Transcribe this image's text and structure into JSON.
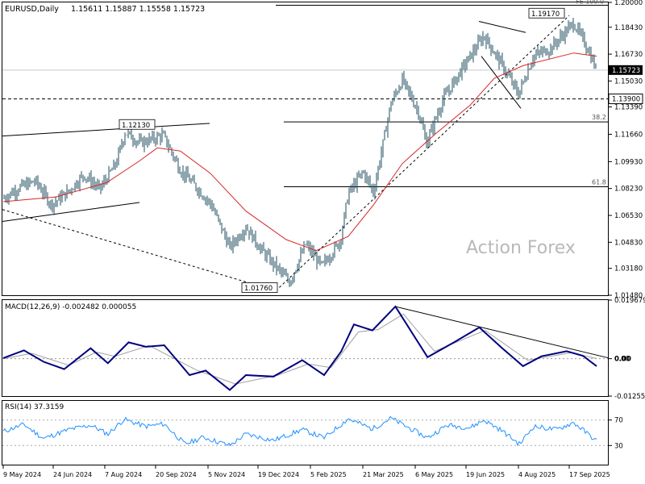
{
  "header": {
    "symbol": "EURUSD,Daily",
    "ohlc": "1.15611 1.15887 1.15558 1.15723"
  },
  "watermark": "Action Forex",
  "colors": {
    "candle": "#1f4e5f",
    "sma": "#d62728",
    "macd_line": "#000080",
    "macd_signal": "#a0a0a0",
    "rsi": "#1e90ff",
    "current_price_bg": "#000000"
  },
  "chart_data": [
    {
      "type": "candlestick",
      "panel": "price",
      "title": "EURUSD,Daily",
      "ylim": [
        1.0148,
        1.2
      ],
      "y_ticks": [
        "1.20000",
        "1.18430",
        "1.16730",
        "1.15030",
        "1.13390",
        "1.11660",
        "1.09930",
        "1.08230",
        "1.06530",
        "1.04830",
        "1.03180",
        "1.01480"
      ],
      "x_ticks": [
        "9 May 2024",
        "24 Jun 2024",
        "7 Aug 2024",
        "20 Sep 2024",
        "5 Nov 2024",
        "19 Dec 2024",
        "5 Feb 2025",
        "21 Mar 2025",
        "6 May 2025",
        "19 Jun 2025",
        "4 Aug 2025",
        "17 Sep 2025"
      ],
      "current_price": "1.15723",
      "levels": [
        {
          "label": "FE 100.0",
          "value": 1.1982
        },
        {
          "label": "38.2",
          "value": 1.1244
        },
        {
          "label": "61.8",
          "value": 1.0834
        },
        {
          "label": "1.13900",
          "value": 1.139
        }
      ],
      "annotations": [
        "1.19170",
        "1.12130",
        "1.01760"
      ],
      "series_close": [
        {
          "date": "2024-05-09",
          "value": 1.076
        },
        {
          "date": "2024-05-23",
          "value": 1.083
        },
        {
          "date": "2024-06-06",
          "value": 1.087
        },
        {
          "date": "2024-06-20",
          "value": 1.072
        },
        {
          "date": "2024-07-04",
          "value": 1.08
        },
        {
          "date": "2024-07-18",
          "value": 1.091
        },
        {
          "date": "2024-08-01",
          "value": 1.082
        },
        {
          "date": "2024-08-15",
          "value": 1.098
        },
        {
          "date": "2024-08-23",
          "value": 1.118
        },
        {
          "date": "2024-09-05",
          "value": 1.111
        },
        {
          "date": "2024-09-25",
          "value": 1.116
        },
        {
          "date": "2024-10-10",
          "value": 1.094
        },
        {
          "date": "2024-10-24",
          "value": 1.083
        },
        {
          "date": "2024-11-06",
          "value": 1.072
        },
        {
          "date": "2024-11-22",
          "value": 1.045
        },
        {
          "date": "2024-12-06",
          "value": 1.058
        },
        {
          "date": "2024-12-20",
          "value": 1.043
        },
        {
          "date": "2025-01-13",
          "value": 1.023
        },
        {
          "date": "2025-01-27",
          "value": 1.047
        },
        {
          "date": "2025-02-10",
          "value": 1.033
        },
        {
          "date": "2025-02-26",
          "value": 1.049
        },
        {
          "date": "2025-03-05",
          "value": 1.079
        },
        {
          "date": "2025-03-18",
          "value": 1.093
        },
        {
          "date": "2025-03-27",
          "value": 1.08
        },
        {
          "date": "2025-04-11",
          "value": 1.136
        },
        {
          "date": "2025-04-21",
          "value": 1.151
        },
        {
          "date": "2025-05-05",
          "value": 1.131
        },
        {
          "date": "2025-05-12",
          "value": 1.111
        },
        {
          "date": "2025-05-26",
          "value": 1.138
        },
        {
          "date": "2025-06-12",
          "value": 1.158
        },
        {
          "date": "2025-07-01",
          "value": 1.179
        },
        {
          "date": "2025-07-17",
          "value": 1.16
        },
        {
          "date": "2025-07-31",
          "value": 1.142
        },
        {
          "date": "2025-08-13",
          "value": 1.166
        },
        {
          "date": "2025-08-28",
          "value": 1.171
        },
        {
          "date": "2025-09-17",
          "value": 1.187
        },
        {
          "date": "2025-09-29",
          "value": 1.171
        },
        {
          "date": "2025-10-07",
          "value": 1.157
        }
      ],
      "series_sma": [
        {
          "date": "2024-05-09",
          "value": 1.074
        },
        {
          "date": "2024-06-24",
          "value": 1.077
        },
        {
          "date": "2024-08-07",
          "value": 1.086
        },
        {
          "date": "2024-09-05",
          "value": 1.1
        },
        {
          "date": "2024-09-20",
          "value": 1.108
        },
        {
          "date": "2024-10-10",
          "value": 1.106
        },
        {
          "date": "2024-11-05",
          "value": 1.092
        },
        {
          "date": "2024-12-06",
          "value": 1.068
        },
        {
          "date": "2025-01-10",
          "value": 1.05
        },
        {
          "date": "2025-02-05",
          "value": 1.043
        },
        {
          "date": "2025-03-05",
          "value": 1.052
        },
        {
          "date": "2025-03-27",
          "value": 1.072
        },
        {
          "date": "2025-04-21",
          "value": 1.098
        },
        {
          "date": "2025-05-20",
          "value": 1.117
        },
        {
          "date": "2025-06-19",
          "value": 1.135
        },
        {
          "date": "2025-07-10",
          "value": 1.152
        },
        {
          "date": "2025-08-04",
          "value": 1.16
        },
        {
          "date": "2025-09-17",
          "value": 1.168
        },
        {
          "date": "2025-10-07",
          "value": 1.166
        }
      ]
    },
    {
      "type": "line",
      "panel": "macd",
      "title": "MACD(12,26,9) -0.002482 0.000055",
      "ylim": [
        -0.01255,
        0.01968
      ],
      "y_ticks": [
        "0.019679",
        "0.00",
        "-0.012552"
      ],
      "series": [
        {
          "name": "MACD",
          "points": [
            {
              "date": "2024-05-09",
              "value": 0.0002
            },
            {
              "date": "2024-05-27",
              "value": 0.0028
            },
            {
              "date": "2024-06-13",
              "value": -0.001
            },
            {
              "date": "2024-07-01",
              "value": -0.0035
            },
            {
              "date": "2024-07-24",
              "value": 0.0035
            },
            {
              "date": "2024-08-08",
              "value": -0.0015
            },
            {
              "date": "2024-08-26",
              "value": 0.0055
            },
            {
              "date": "2024-09-10",
              "value": 0.004
            },
            {
              "date": "2024-09-26",
              "value": 0.0045
            },
            {
              "date": "2024-10-18",
              "value": -0.0055
            },
            {
              "date": "2024-11-01",
              "value": -0.004
            },
            {
              "date": "2024-11-22",
              "value": -0.0105
            },
            {
              "date": "2024-12-06",
              "value": -0.0055
            },
            {
              "date": "2024-12-30",
              "value": -0.006
            },
            {
              "date": "2025-01-24",
              "value": -0.0005
            },
            {
              "date": "2025-02-12",
              "value": -0.0055
            },
            {
              "date": "2025-02-27",
              "value": 0.0025
            },
            {
              "date": "2025-03-10",
              "value": 0.0115
            },
            {
              "date": "2025-03-26",
              "value": 0.0095
            },
            {
              "date": "2025-04-15",
              "value": 0.0175
            },
            {
              "date": "2025-05-13",
              "value": 0.0005
            },
            {
              "date": "2025-06-05",
              "value": 0.0055
            },
            {
              "date": "2025-06-27",
              "value": 0.0105
            },
            {
              "date": "2025-07-17",
              "value": 0.0035
            },
            {
              "date": "2025-08-04",
              "value": -0.0025
            },
            {
              "date": "2025-08-20",
              "value": 0.0008
            },
            {
              "date": "2025-09-11",
              "value": 0.0025
            },
            {
              "date": "2025-09-25",
              "value": 0.001
            },
            {
              "date": "2025-10-07",
              "value": -0.0025
            }
          ]
        },
        {
          "name": "Signal",
          "points": [
            {
              "date": "2024-05-09",
              "value": 0.0
            },
            {
              "date": "2024-06-03",
              "value": 0.0018
            },
            {
              "date": "2024-07-05",
              "value": -0.0022
            },
            {
              "date": "2024-07-29",
              "value": 0.0022
            },
            {
              "date": "2024-08-14",
              "value": 0.0008
            },
            {
              "date": "2024-09-13",
              "value": 0.0044
            },
            {
              "date": "2024-10-24",
              "value": -0.0038
            },
            {
              "date": "2024-11-27",
              "value": -0.0085
            },
            {
              "date": "2025-01-03",
              "value": -0.0055
            },
            {
              "date": "2025-01-29",
              "value": -0.0018
            },
            {
              "date": "2025-02-18",
              "value": -0.003
            },
            {
              "date": "2025-03-14",
              "value": 0.009
            },
            {
              "date": "2025-03-31",
              "value": 0.0098
            },
            {
              "date": "2025-04-22",
              "value": 0.015
            },
            {
              "date": "2025-05-19",
              "value": 0.0025
            },
            {
              "date": "2025-07-02",
              "value": 0.0095
            },
            {
              "date": "2025-08-08",
              "value": -0.0005
            },
            {
              "date": "2025-09-15",
              "value": 0.002
            },
            {
              "date": "2025-10-07",
              "value": 5.5e-05
            }
          ]
        }
      ]
    },
    {
      "type": "line",
      "panel": "rsi",
      "title": "RSI(14) 37.3159",
      "ylim": [
        0,
        100
      ],
      "y_ticks": [
        "70",
        "30"
      ],
      "series": [
        {
          "name": "RSI(14)",
          "points": [
            {
              "date": "2024-05-09",
              "value": 52
            },
            {
              "date": "2024-05-27",
              "value": 63
            },
            {
              "date": "2024-06-13",
              "value": 41
            },
            {
              "date": "2024-07-05",
              "value": 55
            },
            {
              "date": "2024-07-24",
              "value": 62
            },
            {
              "date": "2024-08-08",
              "value": 48
            },
            {
              "date": "2024-08-22",
              "value": 71
            },
            {
              "date": "2024-09-10",
              "value": 60
            },
            {
              "date": "2024-09-26",
              "value": 64
            },
            {
              "date": "2024-10-14",
              "value": 32
            },
            {
              "date": "2024-10-30",
              "value": 43
            },
            {
              "date": "2024-11-22",
              "value": 30
            },
            {
              "date": "2024-12-06",
              "value": 48
            },
            {
              "date": "2024-12-30",
              "value": 38
            },
            {
              "date": "2025-01-24",
              "value": 55
            },
            {
              "date": "2025-02-12",
              "value": 42
            },
            {
              "date": "2025-03-05",
              "value": 72
            },
            {
              "date": "2025-03-26",
              "value": 56
            },
            {
              "date": "2025-04-11",
              "value": 73
            },
            {
              "date": "2025-05-13",
              "value": 42
            },
            {
              "date": "2025-05-30",
              "value": 62
            },
            {
              "date": "2025-06-19",
              "value": 58
            },
            {
              "date": "2025-07-01",
              "value": 70
            },
            {
              "date": "2025-07-17",
              "value": 53
            },
            {
              "date": "2025-08-01",
              "value": 32
            },
            {
              "date": "2025-08-13",
              "value": 60
            },
            {
              "date": "2025-09-02",
              "value": 55
            },
            {
              "date": "2025-09-17",
              "value": 66
            },
            {
              "date": "2025-10-07",
              "value": 37.3
            }
          ]
        }
      ]
    }
  ]
}
